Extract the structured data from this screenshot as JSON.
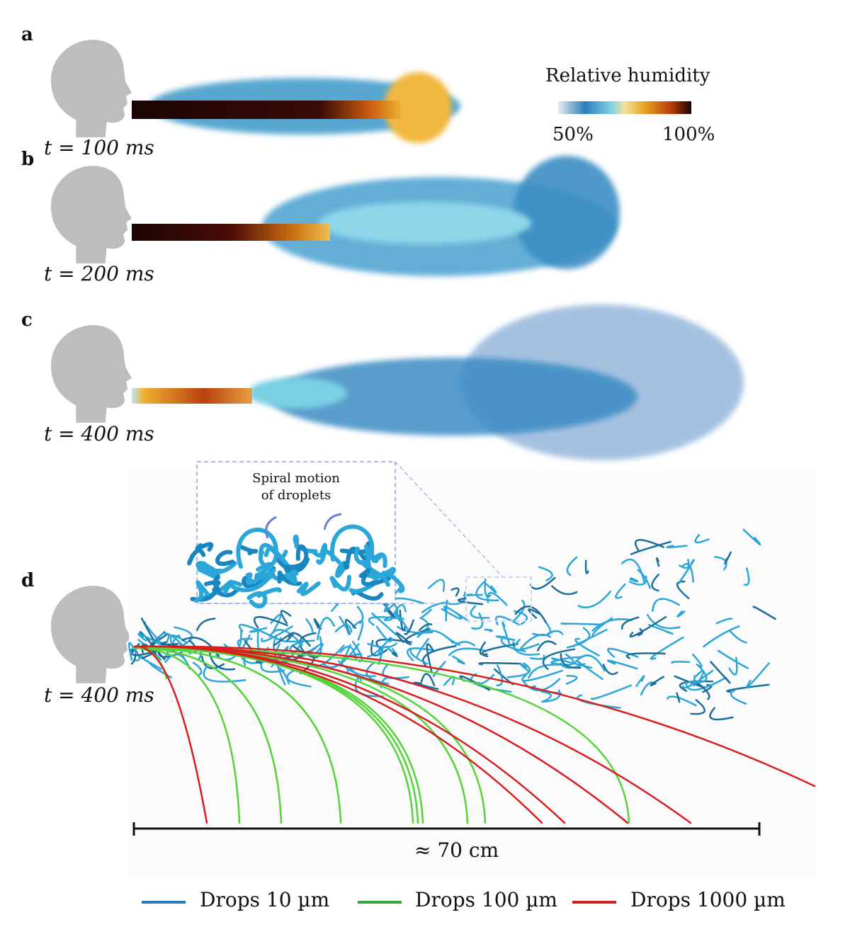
{
  "panels": [
    {
      "label": "a",
      "time": "t = 100 ms"
    },
    {
      "label": "b",
      "time": "t = 200 ms"
    },
    {
      "label": "c",
      "time": "t = 400 ms"
    },
    {
      "label": "d",
      "time": "t = 400 ms"
    }
  ],
  "colorbar": {
    "title": "Relative humidity",
    "min_label": "50%",
    "max_label": "100%",
    "colors": [
      "#e8ecef",
      "#2a7fb8",
      "#7fd0e6",
      "#f2e3a0",
      "#e8a21e",
      "#b83a0c",
      "#1a0505"
    ]
  },
  "inset": {
    "line1": "Spiral motion",
    "line2": "of droplets"
  },
  "scale_bar": {
    "label": "≈ 70 cm"
  },
  "legend": [
    {
      "label": "Drops 10 µm",
      "color": "#2a7ab0"
    },
    {
      "label": "Drops 100 µm",
      "color": "#3aa63a"
    },
    {
      "label": "Drops 1000 µm",
      "color": "#d02020"
    }
  ],
  "colors": {
    "head": "#bdbdbd",
    "drops10": "#2aa6d8",
    "drops100": "#55d43a",
    "drops1000": "#d81e1e"
  }
}
